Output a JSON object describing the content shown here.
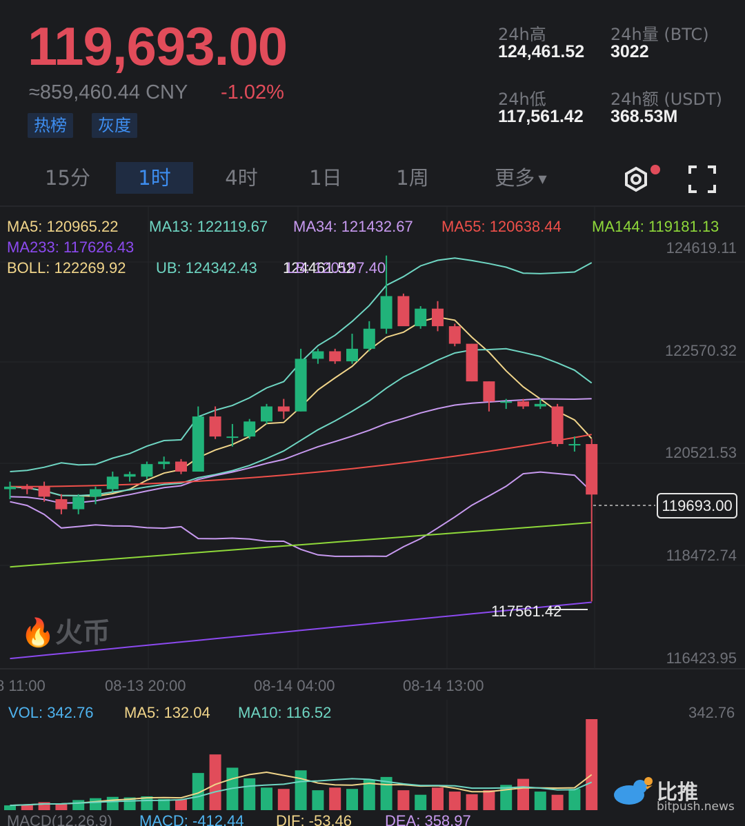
{
  "ticker": {
    "price": "119,693.00",
    "cny": "≈859,460.44 CNY",
    "change": "-1.02%",
    "tags": [
      "热榜",
      "灰度"
    ],
    "stats": {
      "high_label": "24h高",
      "high_value": "124,461.52",
      "vol_label": "24h量 (BTC)",
      "vol_value": "3022",
      "low_label": "24h低",
      "low_value": "117,561.42",
      "amt_label": "24h额 (USDT)",
      "amt_value": "368.53M"
    },
    "up_color": "#21b37a",
    "down_color": "#e14c5a"
  },
  "tabs": {
    "items": [
      "15分",
      "1时",
      "4时",
      "1日",
      "1周",
      "更多"
    ],
    "active": "1时",
    "icons": [
      "settings-icon",
      "fullscreen-icon"
    ]
  },
  "indicators": {
    "ma5": "MA5: 120965.22",
    "ma13": "MA13: 122119.67",
    "ma34": "MA34: 121432.67",
    "ma55": "MA55: 120638.44",
    "ma144": "MA144: 119181.13",
    "ma233": "MA233: 117626.43",
    "boll": "BOLL: 122269.92",
    "ub": "UB: 124342.43",
    "lb": "LB: 120197.40"
  },
  "chart": {
    "y_ticks": [
      "124619.11",
      "122570.32",
      "120521.53",
      "118472.74",
      "116423.95"
    ],
    "x_ticks": [
      "8 11:00",
      "08-13 20:00",
      "08-14 04:00",
      "08-14 13:00"
    ],
    "high_marker": "124461.52",
    "low_marker": "117561.42",
    "last_price": "119693.00",
    "watermark": "火币"
  },
  "volume": {
    "vol": "VOL: 342.76",
    "ma5": "MA5: 132.04",
    "ma10": "MA10: 116.52",
    "axis_max": "342.76"
  },
  "macd": {
    "title": "MACD(12,26,9)",
    "macd": "MACD: -412.44",
    "dif": "DIF: -53.46",
    "dea": "DEA: 358.97"
  },
  "brand": {
    "name": "比推",
    "url": "bitpush.news"
  },
  "chart_data": {
    "type": "candlestick",
    "interval": "1h",
    "ylim": [
      116423.95,
      124619.11
    ],
    "candles": [
      {
        "o": 119800,
        "h": 119950,
        "l": 119600,
        "c": 119850
      },
      {
        "o": 119850,
        "h": 119900,
        "l": 119700,
        "c": 119800
      },
      {
        "o": 119850,
        "h": 119950,
        "l": 119550,
        "c": 119650
      },
      {
        "o": 119600,
        "h": 119700,
        "l": 119300,
        "c": 119400
      },
      {
        "o": 119400,
        "h": 119700,
        "l": 119300,
        "c": 119650
      },
      {
        "o": 119650,
        "h": 119850,
        "l": 119500,
        "c": 119800
      },
      {
        "o": 119800,
        "h": 120150,
        "l": 119750,
        "c": 120050
      },
      {
        "o": 120050,
        "h": 120150,
        "l": 119950,
        "c": 120100
      },
      {
        "o": 120050,
        "h": 120350,
        "l": 120000,
        "c": 120300
      },
      {
        "o": 120300,
        "h": 120450,
        "l": 120200,
        "c": 120350
      },
      {
        "o": 120350,
        "h": 120400,
        "l": 120100,
        "c": 120150
      },
      {
        "o": 120150,
        "h": 121450,
        "l": 120150,
        "c": 121250
      },
      {
        "o": 121250,
        "h": 121450,
        "l": 120800,
        "c": 120850
      },
      {
        "o": 120850,
        "h": 121100,
        "l": 120650,
        "c": 120850
      },
      {
        "o": 120850,
        "h": 121200,
        "l": 120800,
        "c": 121150
      },
      {
        "o": 121150,
        "h": 121500,
        "l": 121100,
        "c": 121450
      },
      {
        "o": 121450,
        "h": 121600,
        "l": 121200,
        "c": 121350
      },
      {
        "o": 121350,
        "h": 122600,
        "l": 121350,
        "c": 122400
      },
      {
        "o": 122400,
        "h": 122600,
        "l": 122300,
        "c": 122550
      },
      {
        "o": 122550,
        "h": 122600,
        "l": 122300,
        "c": 122350
      },
      {
        "o": 122350,
        "h": 122900,
        "l": 122300,
        "c": 122600
      },
      {
        "o": 122600,
        "h": 123150,
        "l": 122550,
        "c": 123000
      },
      {
        "o": 123000,
        "h": 124460,
        "l": 122900,
        "c": 123650
      },
      {
        "o": 123650,
        "h": 123700,
        "l": 123100,
        "c": 123050
      },
      {
        "o": 123050,
        "h": 123450,
        "l": 123000,
        "c": 123400
      },
      {
        "o": 123400,
        "h": 123550,
        "l": 122950,
        "c": 123050
      },
      {
        "o": 123050,
        "h": 123100,
        "l": 122650,
        "c": 122700
      },
      {
        "o": 122700,
        "h": 122700,
        "l": 121950,
        "c": 121950
      },
      {
        "o": 121950,
        "h": 121950,
        "l": 121350,
        "c": 121550
      },
      {
        "o": 121550,
        "h": 121600,
        "l": 121400,
        "c": 121550
      },
      {
        "o": 121550,
        "h": 121600,
        "l": 121400,
        "c": 121450
      },
      {
        "o": 121450,
        "h": 121600,
        "l": 121400,
        "c": 121500
      },
      {
        "o": 121450,
        "h": 121500,
        "l": 120650,
        "c": 120700
      },
      {
        "o": 120700,
        "h": 120850,
        "l": 120550,
        "c": 120700
      },
      {
        "o": 120700,
        "h": 120800,
        "l": 117561,
        "c": 119693
      }
    ],
    "volumes": [
      18,
      22,
      30,
      25,
      38,
      45,
      50,
      48,
      52,
      42,
      40,
      140,
      210,
      160,
      120,
      85,
      80,
      150,
      75,
      85,
      80,
      115,
      125,
      75,
      58,
      85,
      70,
      60,
      75,
      95,
      118,
      70,
      58,
      80,
      343
    ]
  }
}
